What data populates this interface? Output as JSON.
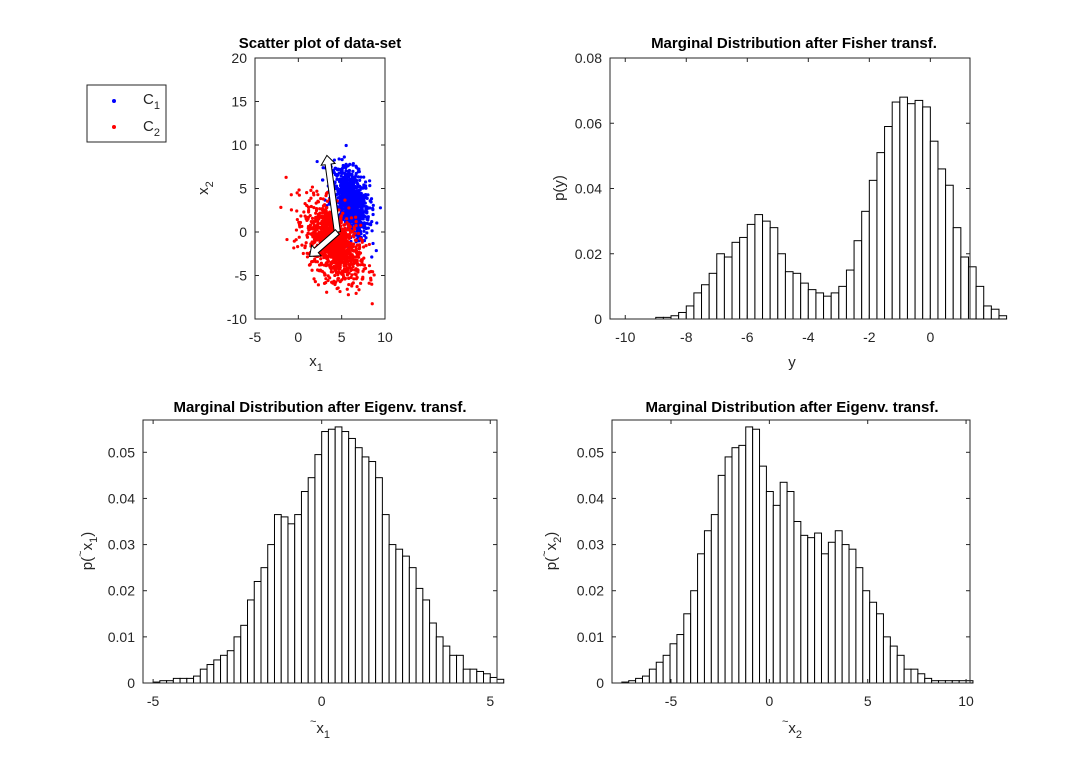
{
  "figure": {
    "background": "#ffffff",
    "legend": {
      "entries": [
        {
          "name": "C",
          "sub": "1",
          "color": "#0000ff"
        },
        {
          "name": "C",
          "sub": "2",
          "color": "#ff0000"
        }
      ]
    }
  },
  "chart_data": [
    {
      "type": "scatter",
      "title": "Scatter plot of data-set",
      "xlabel": {
        "main": "x",
        "sub": "1"
      },
      "ylabel": {
        "main": "x",
        "sub": "2"
      },
      "xlim": [
        -5,
        10
      ],
      "ylim": [
        -10,
        20
      ],
      "xticks": [
        "-5",
        "0",
        "5",
        "10"
      ],
      "yticks": [
        "-10",
        "-5",
        "0",
        "5",
        "10",
        "15",
        "20"
      ],
      "series": [
        {
          "name": "C1",
          "color": "#0000ff",
          "center": [
            6,
            3.5
          ],
          "spread": [
            1.1,
            2.0
          ],
          "corr": -0.35,
          "n": 900
        },
        {
          "name": "C2",
          "color": "#ff0000",
          "center": [
            4,
            -1.2
          ],
          "spread": [
            1.6,
            2.2
          ],
          "corr": -0.45,
          "n": 1100
        }
      ],
      "arrows": [
        {
          "from": [
            4.5,
            0.0
          ],
          "to": [
            3.3,
            8.8
          ]
        },
        {
          "from": [
            4.5,
            0.0
          ],
          "to": [
            1.3,
            -2.8
          ]
        }
      ]
    },
    {
      "type": "bar",
      "title": "Marginal Distribution after Fisher transf.",
      "xlabel": {
        "main": "y",
        "sub": ""
      },
      "ylabel": {
        "main": "p(y)",
        "sub": ""
      },
      "xlim": [
        -10.5,
        1.3
      ],
      "ylim": [
        0,
        0.08
      ],
      "xticks": [
        "-10",
        "-8",
        "-6",
        "-4",
        "-2",
        "0"
      ],
      "yticks": [
        "0",
        "0.02",
        "0.04",
        "0.06",
        "0.08"
      ],
      "bin_start": -9.0,
      "bin_width": 0.25,
      "values": [
        0.0005,
        0.0005,
        0.001,
        0.002,
        0.004,
        0.008,
        0.0105,
        0.014,
        0.02,
        0.019,
        0.0235,
        0.025,
        0.029,
        0.032,
        0.03,
        0.028,
        0.02,
        0.0145,
        0.014,
        0.011,
        0.009,
        0.008,
        0.007,
        0.008,
        0.01,
        0.015,
        0.024,
        0.033,
        0.0425,
        0.051,
        0.059,
        0.0665,
        0.068,
        0.066,
        0.067,
        0.065,
        0.0545,
        0.046,
        0.041,
        0.028,
        0.019,
        0.016,
        0.01,
        0.004,
        0.003,
        0.001
      ]
    },
    {
      "type": "bar",
      "title": "Marginal Distribution after Eigenv. transf.",
      "xlabel": {
        "main": "x",
        "sub": "1",
        "tilde": true
      },
      "ylabel": {
        "main": "p(x",
        "sub": "1",
        "tilde": true
      },
      "xlim": [
        -5.3,
        5.2
      ],
      "ylim": [
        0,
        0.057
      ],
      "xticks": [
        "-5",
        "0",
        "5"
      ],
      "yticks": [
        "0",
        "0.01",
        "0.02",
        "0.03",
        "0.04",
        "0.05"
      ],
      "bin_start": -5.0,
      "bin_width": 0.2,
      "values": [
        0.0002,
        0.0005,
        0.0005,
        0.001,
        0.001,
        0.001,
        0.0015,
        0.003,
        0.004,
        0.005,
        0.006,
        0.007,
        0.01,
        0.0125,
        0.018,
        0.022,
        0.025,
        0.03,
        0.0365,
        0.036,
        0.0345,
        0.0365,
        0.0415,
        0.0445,
        0.0495,
        0.0545,
        0.055,
        0.0555,
        0.0545,
        0.053,
        0.051,
        0.049,
        0.048,
        0.0445,
        0.0365,
        0.03,
        0.029,
        0.0275,
        0.025,
        0.0205,
        0.018,
        0.013,
        0.01,
        0.008,
        0.006,
        0.006,
        0.003,
        0.003,
        0.0025,
        0.002,
        0.0012,
        0.0008
      ]
    },
    {
      "type": "bar",
      "title": "Marginal Distribution after Eigenv. transf.",
      "xlabel": {
        "main": "x",
        "sub": "2",
        "tilde": true
      },
      "ylabel": {
        "main": "p(x",
        "sub": "2",
        "tilde": true
      },
      "xlim": [
        -8,
        10.2
      ],
      "ylim": [
        0,
        0.057
      ],
      "xticks": [
        "-5",
        "0",
        "5",
        "10"
      ],
      "yticks": [
        "0",
        "0.01",
        "0.02",
        "0.03",
        "0.04",
        "0.05"
      ],
      "bin_start": -7.5,
      "bin_width": 0.35,
      "values": [
        0.0002,
        0.0005,
        0.001,
        0.0015,
        0.003,
        0.0045,
        0.006,
        0.0085,
        0.0105,
        0.015,
        0.02,
        0.028,
        0.033,
        0.0365,
        0.045,
        0.049,
        0.051,
        0.0515,
        0.0555,
        0.055,
        0.047,
        0.0415,
        0.0385,
        0.0435,
        0.0415,
        0.035,
        0.032,
        0.0315,
        0.0325,
        0.028,
        0.0305,
        0.033,
        0.03,
        0.029,
        0.025,
        0.02,
        0.0175,
        0.015,
        0.01,
        0.008,
        0.006,
        0.003,
        0.003,
        0.002,
        0.001,
        0.0005,
        0.0005,
        0.0005,
        0.0005,
        0.0005,
        0.0005
      ]
    }
  ]
}
